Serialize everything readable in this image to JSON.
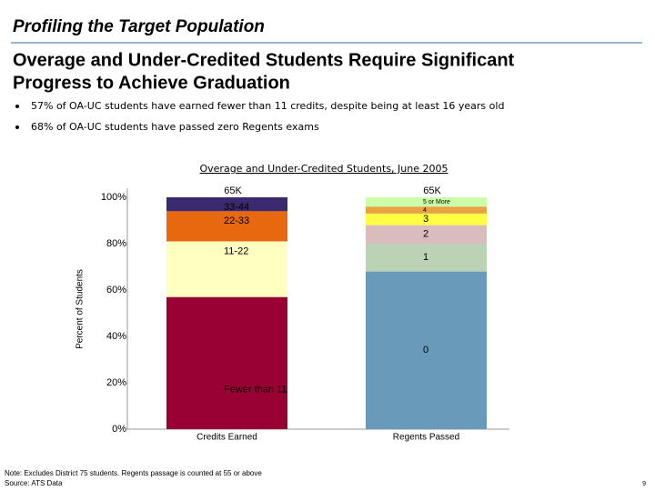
{
  "slide": {
    "title": "Profiling the Target Population",
    "headline": [
      "Overage and Under-Credited Students Require Significant",
      "Progress to Achieve Graduation"
    ],
    "bullets": [
      "57% of OA-UC students have earned fewer than 11 credits, despite being at least 16 years old",
      "68% of OA-UC students have passed zero Regents exams"
    ],
    "notes": [
      "Note: Excludes District 75 students.  Regents passage is counted at 55 or above",
      "Source: ATS Data"
    ],
    "page_number": "9"
  },
  "chart_data": {
    "type": "stacked_bar",
    "title": "Overage and Under-Credited Students, June 2005",
    "y_label": "Percent of Students",
    "categories": [
      "Credits Earned",
      "Regents Passed"
    ],
    "bar_top_labels": [
      "65K",
      "65K"
    ],
    "ylim": [
      0,
      100
    ],
    "yticks": [
      {
        "value": 0,
        "label": "0%"
      },
      {
        "value": 20,
        "label": "20%"
      },
      {
        "value": 40,
        "label": "40%"
      },
      {
        "value": 60,
        "label": "60%"
      },
      {
        "value": 80,
        "label": "80%"
      },
      {
        "value": 100,
        "label": "100%"
      }
    ],
    "series": [
      {
        "name": "Fewer than 11",
        "color": "#990033",
        "values": [
          57,
          null
        ]
      },
      {
        "name": "11-22",
        "color": "#ffffc0",
        "values": [
          24,
          null
        ]
      },
      {
        "name": "22-33",
        "color": "#e8680f",
        "values": [
          13,
          null
        ]
      },
      {
        "name": "33-44",
        "color": "#3b2a6e",
        "values": [
          6,
          null
        ]
      },
      {
        "name": "0",
        "color": "#6a9aba",
        "values": [
          null,
          68
        ]
      },
      {
        "name": "1",
        "color": "#bcd2b4",
        "values": [
          null,
          12
        ]
      },
      {
        "name": "2",
        "color": "#d9bcbc",
        "values": [
          null,
          8
        ]
      },
      {
        "name": "3",
        "color": "#ffff44",
        "values": [
          null,
          5
        ]
      },
      {
        "name": "4",
        "color": "#e8a242",
        "values": [
          null,
          3
        ]
      },
      {
        "name": "5 or More",
        "color": "#ccffaa",
        "values": [
          null,
          4
        ]
      }
    ]
  }
}
